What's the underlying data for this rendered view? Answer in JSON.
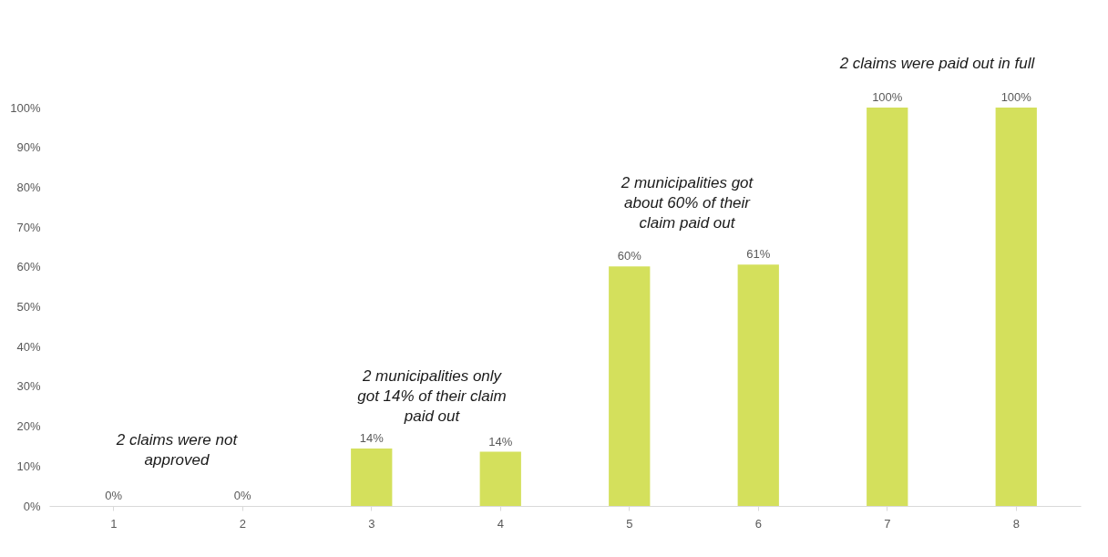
{
  "chart_data": {
    "type": "bar",
    "categories": [
      "1",
      "2",
      "3",
      "4",
      "5",
      "6",
      "7",
      "8"
    ],
    "values": [
      0,
      0,
      14.4,
      13.6,
      60.1,
      60.6,
      100,
      100
    ],
    "value_labels": [
      "0%",
      "0%",
      "14%",
      "14%",
      "60%",
      "61%",
      "100%",
      "100%"
    ],
    "color": "#d4e05c",
    "ylim": [
      0,
      100
    ],
    "yticks": [
      {
        "value": 0,
        "label": "0%"
      },
      {
        "value": 10,
        "label": "10%"
      },
      {
        "value": 20,
        "label": "20%"
      },
      {
        "value": 30,
        "label": "30%"
      },
      {
        "value": 40,
        "label": "40%"
      },
      {
        "value": 50,
        "label": "50%"
      },
      {
        "value": 60,
        "label": "60%"
      },
      {
        "value": 70,
        "label": "70%"
      },
      {
        "value": 80,
        "label": "80%"
      },
      {
        "value": 90,
        "label": "90%"
      },
      {
        "value": 100,
        "label": "100%"
      }
    ],
    "grid": false,
    "annotations": [
      "2 claims were not approved",
      "2 municipalities only got 14% of their claim paid out",
      "2 municipalities got about 60% of their claim paid out",
      "2 claims were paid out in full"
    ]
  }
}
